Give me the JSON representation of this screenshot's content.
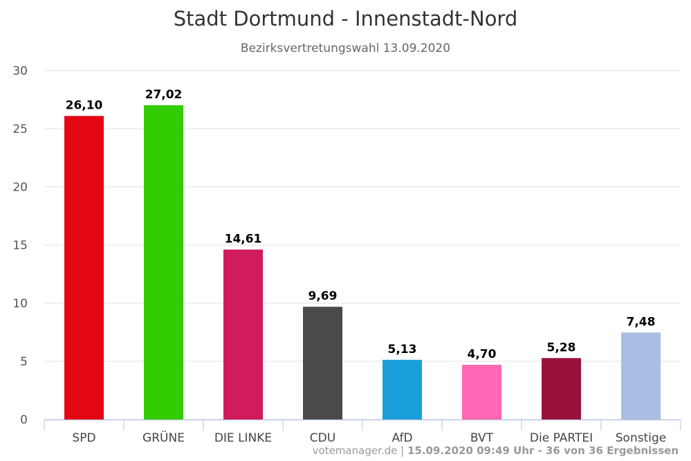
{
  "chart_data": {
    "type": "bar",
    "title": "Stadt Dortmund - Innenstadt-Nord",
    "subtitle": "Bezirksvertretungswahl 13.09.2020",
    "categories": [
      "SPD",
      "GRÜNE",
      "DIE LINKE",
      "CDU",
      "AfD",
      "BVT",
      "Die PARTEI",
      "Sonstige"
    ],
    "values": [
      26.1,
      27.02,
      14.61,
      9.69,
      5.13,
      4.7,
      5.28,
      7.48
    ],
    "labels": [
      "26,10",
      "27,02",
      "14,61",
      "9,69",
      "5,13",
      "4,70",
      "5,28",
      "7,48"
    ],
    "colors": [
      "#e30613",
      "#33cc00",
      "#d01b5e",
      "#4a4a4a",
      "#1a9ed9",
      "#ff66b3",
      "#99123a",
      "#aabde3"
    ],
    "ylim": [
      0,
      30
    ],
    "yticks": [
      "0",
      "5",
      "10",
      "15",
      "20",
      "25",
      "30"
    ],
    "grid": true,
    "xlabel": "",
    "ylabel": ""
  },
  "footer": {
    "source": "votemanager.de | ",
    "info": "15.09.2020 09:49 Uhr - 36 von 36 Ergebnissen"
  }
}
